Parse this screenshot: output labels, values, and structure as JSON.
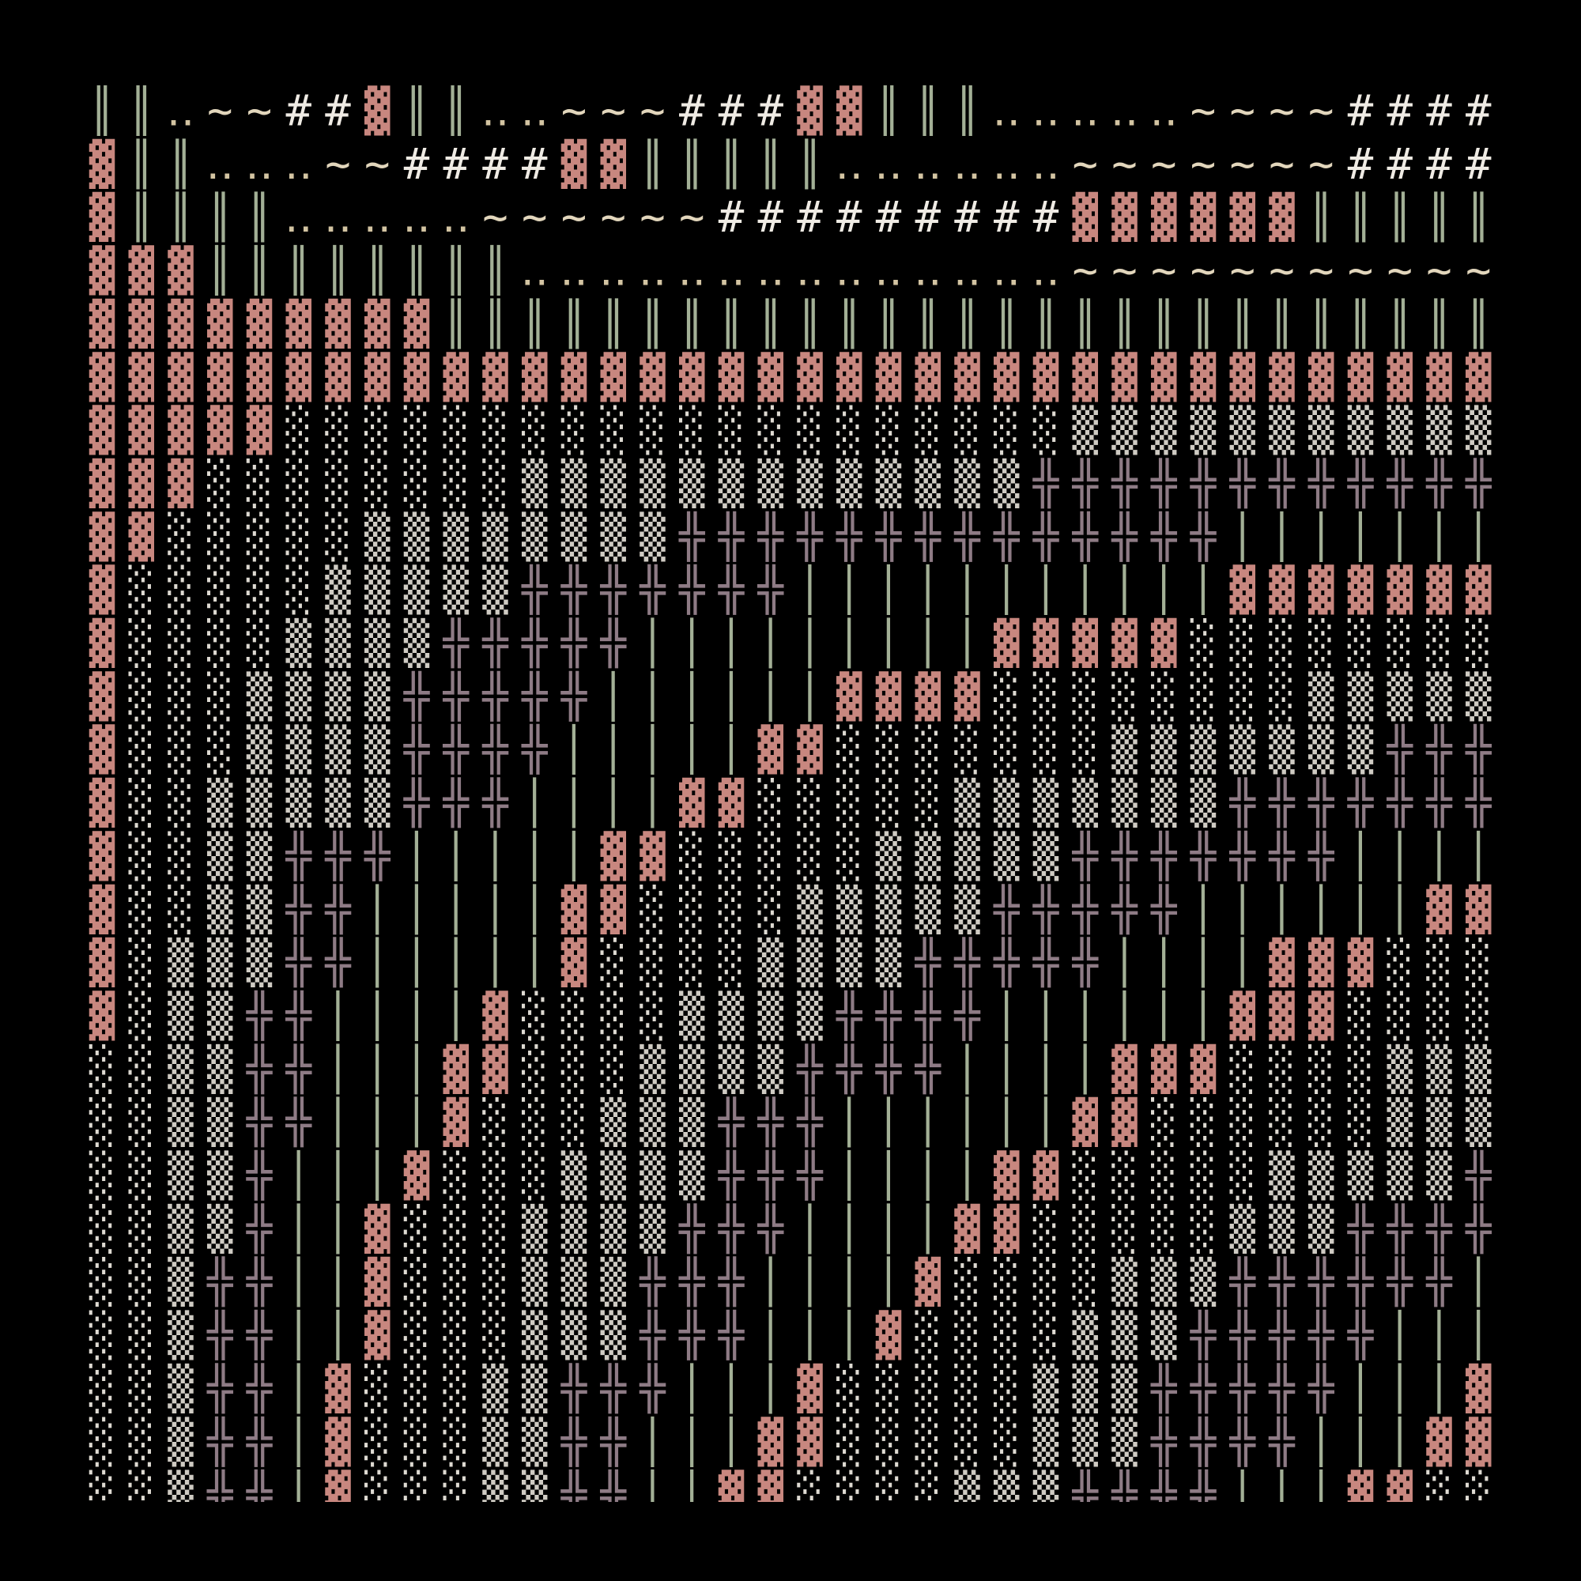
{
  "grid": {
    "rows": [
      "║║‥~~##▓║║‥‥~~~###▓▓║║║‥‥‥‥‥~~~~####",
      "▓║║‥‥‥~~####▓▓║║║║║‥‥‥‥‥‥~~~~~~~####",
      "▓║║║║‥‥‥‥‥~~~~~~#########▓▓▓▓▓▓║║║║║",
      "▓▓▓║║║║║║║║‥‥‥‥‥‥‥‥‥‥‥‥‥‥~~~~~~~~~~~",
      "▓▓▓▓▓▓▓▓▓║║║║║║║║║║║║║║║║║║║║║║║║║║║",
      "▓▓▓▓▓▓▓▓▓▓▓▓▓▓▓▓▓▓▓▓▓▓▓▓▓▓▓▓▓▓▓▓▓▓▓▓",
      "▓▓▓▓▓░░░░░░░░░░░░░░░░░░░░▒▒▒▒▒▒▒▒▒▒▒",
      "▓▓▓░░░░░░░░▒▒▒▒▒▒▒▒▒▒▒▒▒╬╬╬╬╬╬╬╬╬╬╬╬",
      "▓▓░░░░░▒▒▒▒▒▒▒▒╬╬╬╬╬╬╬╬╬╬╬╬╬╬│││││││",
      "▓░░░░░▒▒▒▒▒╬╬╬╬╬╬╬│││││││││││▓▓▓▓▓▓▓",
      "▓░░░░▒▒▒▒╬╬╬╬╬│││││││││▓▓▓▓▓░░░░░░░░",
      "▓░░░▒▒▒▒╬╬╬╬╬││││││▓▓▓▓░░░░░░░░▒▒▒▒▒",
      "▓░░░▒▒▒▒╬╬╬╬│││││▓▓░░░░░░░▒▒▒▒▒▒▒╬╬╬",
      "▓░░▒▒▒▒▒╬╬╬││││▓▓░░░░░▒▒▒▒▒▒▒╬╬╬╬╬╬╬",
      "▓░░▒▒╬╬╬│││││▓▓░░░░░▒▒▒▒▒╬╬╬╬╬╬╬││││",
      "▓░░▒▒╬╬│││││▓▓░░░░▒▒▒▒▒╬╬╬╬╬││││││▓▓",
      "▓░▒▒▒╬╬│││││▓░░░░▒▒▒▒╬╬╬╬╬││││▓▓▓░░░",
      "▓░▒▒╬╬││││▓░░░░▒▒▒▒╬╬╬╬││││││▓▓▓░░░░",
      "░░▒▒╬╬│││▓▓░░░▒▒▒▒╬╬╬╬││││▓▓▓░░░░▒▒▒",
      "░░▒▒╬╬│││▓░░░▒▒▒╬╬╬││││││▓▓░░░░░░▒▒▒",
      "░░▒▒╬│││▓░░░▒▒▒▒╬╬╬││││▓▓░░░░░▒▒▒▒▒╬",
      "░░▒▒╬││▓░░░▒▒▒▒╬╬╬││││▓▓░░░░░▒▒▒╬╬╬╬",
      "░░▒╬╬││▓░░░▒▒▒╬╬╬││││▓░░░░▒▒▒╬╬╬╬╬╬│",
      "░░▒╬╬││▓░░░▒▒▒╬╬╬│││▓░░░░▒▒▒╬╬╬╬╬│││",
      "░░▒╬╬│▓░░░▒▒╬╬╬│││▓░░░░░▒▒▒╬╬╬╬╬│││▓",
      "░░▒╬╬│▓░░░▒▒╬╬│││▓▓░░░░░▒▒▒╬╬╬╬│││▓▓",
      "░░▒╬╬│▓░░░▒▒╬╬││▓▓░░░░▒▒▒╬╬╬╬│││▓▓░░"
    ],
    "glyph_colors": {
      "▓": "#c8877f",
      "║": "#a3b096",
      "│": "#a3b096",
      "‥": "#d3c4a2",
      "~": "#e2d6bc",
      "#": "#efebe4",
      "░": "#dedad2",
      "▒": "#cfcbc3",
      "╬": "#8e7b85"
    }
  }
}
